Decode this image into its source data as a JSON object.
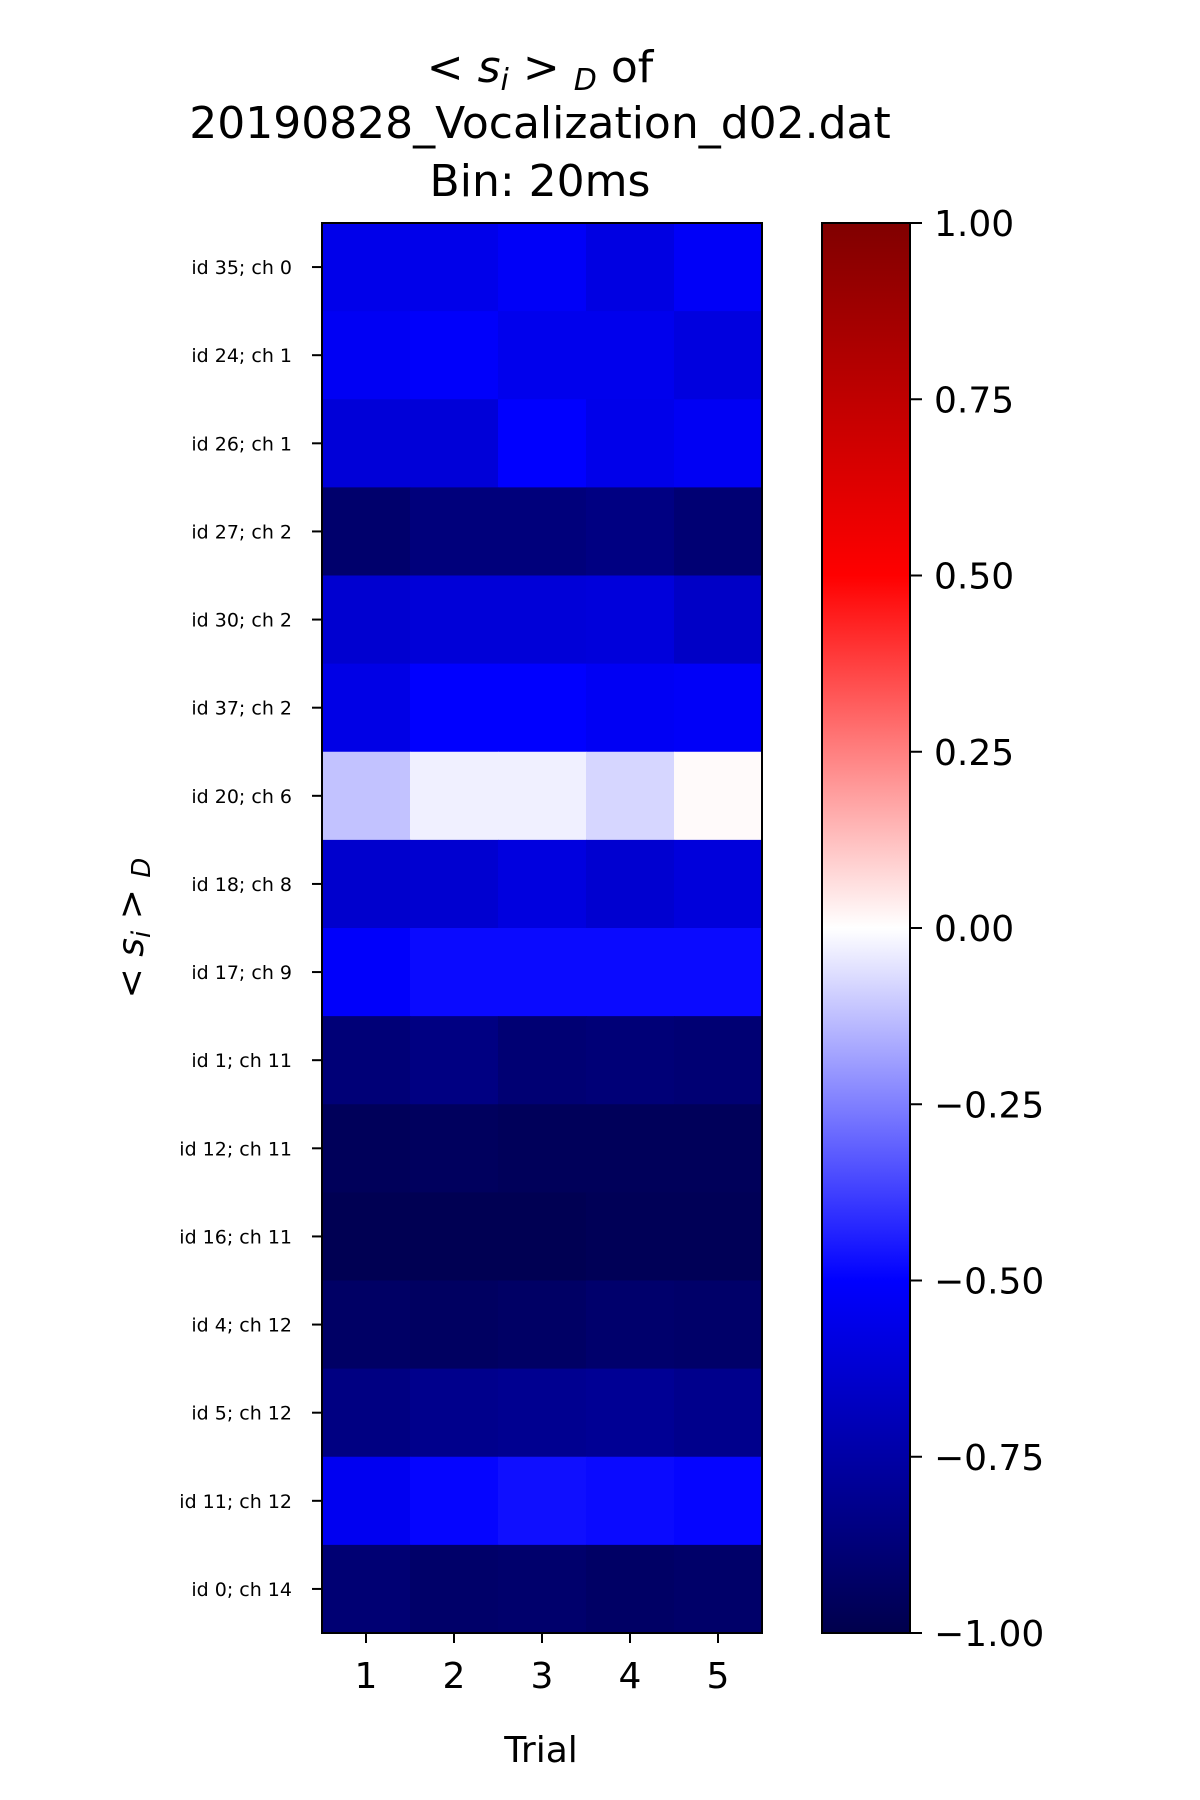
{
  "chart_data": {
    "type": "heatmap",
    "title": {
      "line1_prefix": "< ",
      "line1_sym": "s",
      "line1_sub_i": "i",
      "line1_mid": " > ",
      "line1_sub_d": "D",
      "line1_suffix": " of",
      "line2": "20190828_Vocalization_d02.dat",
      "line3": "Bin: 20ms"
    },
    "xlabel": "Trial",
    "ylabel": {
      "prefix": "< ",
      "sym": "s",
      "sub_i": "i",
      "mid": " > ",
      "sub_d": "D"
    },
    "x_categories": [
      "1",
      "2",
      "3",
      "4",
      "5"
    ],
    "y_categories": [
      "id 35; ch 0",
      "id 24; ch 1",
      "id 26; ch 1",
      "id 27; ch 2",
      "id 30; ch 2",
      "id 37; ch 2",
      "id 20; ch 6",
      "id 18; ch 8",
      "id 17; ch 9",
      "id 1; ch 11",
      "id 12; ch 11",
      "id 16; ch 11",
      "id 4; ch 12",
      "id 5; ch 12",
      "id 11; ch 12",
      "id 0; ch 14"
    ],
    "values": [
      [
        -0.56,
        -0.56,
        -0.52,
        -0.58,
        -0.52
      ],
      [
        -0.53,
        -0.51,
        -0.55,
        -0.55,
        -0.59
      ],
      [
        -0.61,
        -0.61,
        -0.5,
        -0.56,
        -0.53
      ],
      [
        -0.91,
        -0.87,
        -0.87,
        -0.85,
        -0.89
      ],
      [
        -0.63,
        -0.61,
        -0.61,
        -0.6,
        -0.66
      ],
      [
        -0.57,
        -0.5,
        -0.5,
        -0.53,
        -0.52
      ],
      [
        -0.12,
        -0.03,
        -0.03,
        -0.08,
        0.01
      ],
      [
        -0.64,
        -0.63,
        -0.59,
        -0.63,
        -0.6
      ],
      [
        -0.51,
        -0.48,
        -0.48,
        -0.48,
        -0.48
      ],
      [
        -0.88,
        -0.85,
        -0.89,
        -0.88,
        -0.89
      ],
      [
        -0.96,
        -0.95,
        -0.96,
        -0.96,
        -0.96
      ],
      [
        -0.98,
        -0.98,
        -0.98,
        -0.97,
        -0.97
      ],
      [
        -0.93,
        -0.94,
        -0.93,
        -0.91,
        -0.92
      ],
      [
        -0.85,
        -0.82,
        -0.81,
        -0.8,
        -0.82
      ],
      [
        -0.54,
        -0.49,
        -0.47,
        -0.48,
        -0.49
      ],
      [
        -0.89,
        -0.92,
        -0.91,
        -0.93,
        -0.92
      ]
    ],
    "colorbar": {
      "colormap": "seismic",
      "range": [
        -1.0,
        1.0
      ],
      "ticks": [
        "1.00",
        "0.75",
        "0.50",
        "0.25",
        "0.00",
        "−0.25",
        "−0.50",
        "−0.75",
        "−1.00"
      ],
      "tick_values": [
        1.0,
        0.75,
        0.5,
        0.25,
        0.0,
        -0.25,
        -0.5,
        -0.75,
        -1.0
      ]
    }
  }
}
